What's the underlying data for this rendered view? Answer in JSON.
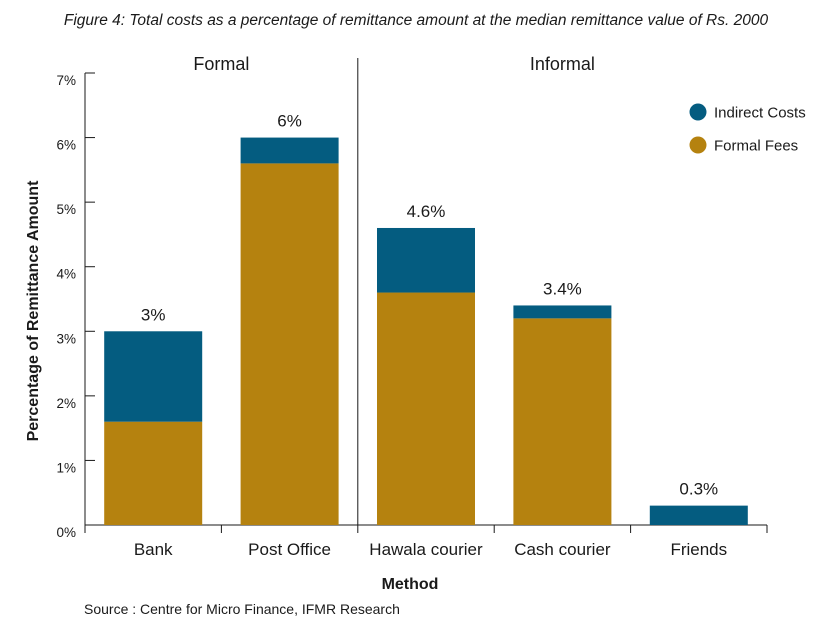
{
  "title": "Figure 4: Total costs as a percentage of remittance amount at the median remittance value of Rs. 2000",
  "source": "Source : Centre for Micro Finance, IFMR Research",
  "chart_data": {
    "type": "bar",
    "stacked": true,
    "categories": [
      "Bank",
      "Post Office",
      "Hawala courier",
      "Cash courier",
      "Friends"
    ],
    "series": [
      {
        "name": "Formal Fees",
        "color": "#B5820F",
        "values": [
          1.6,
          5.6,
          3.6,
          3.2,
          0.0
        ]
      },
      {
        "name": "Indirect Costs",
        "color": "#045C80",
        "values": [
          1.4,
          0.4,
          1.0,
          0.2,
          0.3
        ]
      }
    ],
    "total_labels": [
      "3%",
      "6%",
      "4.6%",
      "3.4%",
      "0.3%"
    ],
    "groups": [
      {
        "label": "Formal",
        "categories": [
          "Bank",
          "Post Office"
        ]
      },
      {
        "label": "Informal",
        "categories": [
          "Hawala courier",
          "Cash courier",
          "Friends"
        ]
      }
    ],
    "xlabel": "Method",
    "ylabel": "Percentage of Remittance Amount",
    "ylim": [
      0,
      7
    ],
    "yticks": [
      "0%",
      "1%",
      "2%",
      "3%",
      "4%",
      "5%",
      "6%",
      "7%"
    ],
    "legend": {
      "position": "top-right",
      "entries": [
        {
          "name": "Indirect Costs",
          "color": "#045C80"
        },
        {
          "name": "Formal Fees",
          "color": "#B5820F"
        }
      ]
    },
    "grid": false
  }
}
